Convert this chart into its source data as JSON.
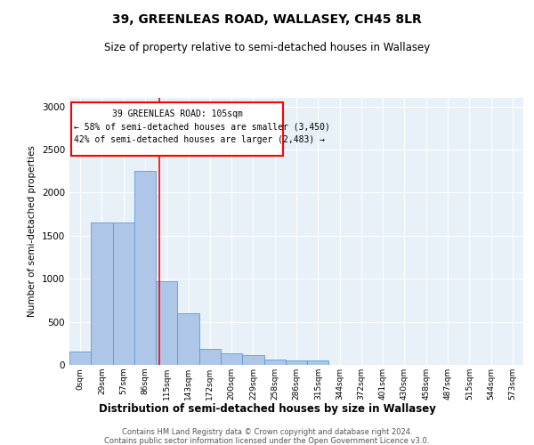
{
  "title": "39, GREENLEAS ROAD, WALLASEY, CH45 8LR",
  "subtitle": "Size of property relative to semi-detached houses in Wallasey",
  "xlabel": "Distribution of semi-detached houses by size in Wallasey",
  "ylabel": "Number of semi-detached properties",
  "categories": [
    "0sqm",
    "29sqm",
    "57sqm",
    "86sqm",
    "115sqm",
    "143sqm",
    "172sqm",
    "200sqm",
    "229sqm",
    "258sqm",
    "286sqm",
    "315sqm",
    "344sqm",
    "372sqm",
    "401sqm",
    "430sqm",
    "458sqm",
    "487sqm",
    "515sqm",
    "544sqm",
    "573sqm"
  ],
  "values": [
    155,
    1650,
    1650,
    2250,
    975,
    600,
    185,
    135,
    115,
    65,
    55,
    50,
    0,
    0,
    0,
    0,
    0,
    0,
    0,
    0,
    0
  ],
  "bar_color": "#aec6e8",
  "bar_edge_color": "#5b9bd5",
  "property_sqm": 105,
  "annotation_text_line1": "39 GREENLEAS ROAD: 105sqm",
  "annotation_text_line2": "← 58% of semi-detached houses are smaller (3,450)",
  "annotation_text_line3": "42% of semi-detached houses are larger (2,483) →",
  "ylim": [
    0,
    3100
  ],
  "yticks": [
    0,
    500,
    1000,
    1500,
    2000,
    2500,
    3000
  ],
  "bg_color": "#e8f0f8",
  "footer_line1": "Contains HM Land Registry data © Crown copyright and database right 2024.",
  "footer_line2": "Contains public sector information licensed under the Open Government Licence v3.0."
}
